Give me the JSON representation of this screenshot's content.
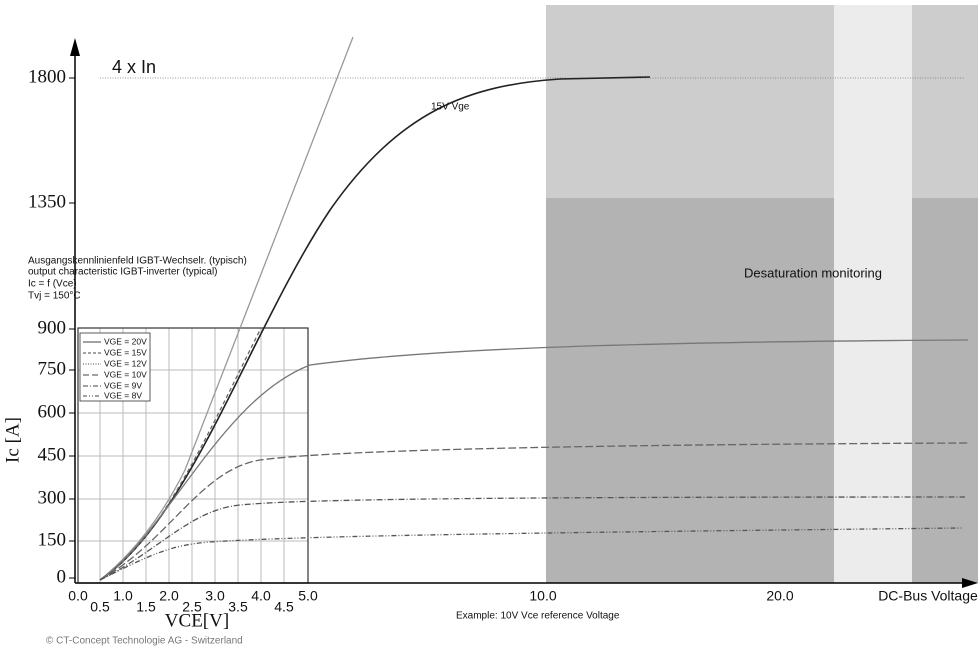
{
  "annotations": {
    "nominal": "4 x In",
    "curve": "15V Vge",
    "region": "Desaturation monitoring",
    "example": "Example: 10V Vce reference Voltage",
    "copyright": "© CT-Concept Technologie AG - Switzerland"
  },
  "inset": {
    "lines": [
      "Ausgangskennlinienfeld IGBT-Wechselr. (typisch)",
      "output characteristic IGBT-inverter (typical)",
      "Ic = f (Vce)",
      "Tvj = 150°C"
    ],
    "legend": [
      "VGE = 20V",
      "VGE = 15V",
      "VGE = 12V",
      "VGE = 10V",
      "VGE = 9V",
      "VGE = 8V"
    ]
  },
  "y_axis": {
    "title": "Ic [A]",
    "ticks": [
      "0",
      "150",
      "300",
      "450",
      "600",
      "750",
      "900",
      "1350",
      "1800"
    ]
  },
  "x_axis": {
    "title": "VCE[V]",
    "end_label": "DC-Bus Voltage",
    "ticks_upper": [
      "0.0",
      "1.0",
      "2.0",
      "3.0",
      "4.0",
      "5.0",
      "10.0",
      "20.0"
    ],
    "ticks_lower": [
      "0.5",
      "1.5",
      "2.5",
      "3.5",
      "4.5"
    ]
  }
}
